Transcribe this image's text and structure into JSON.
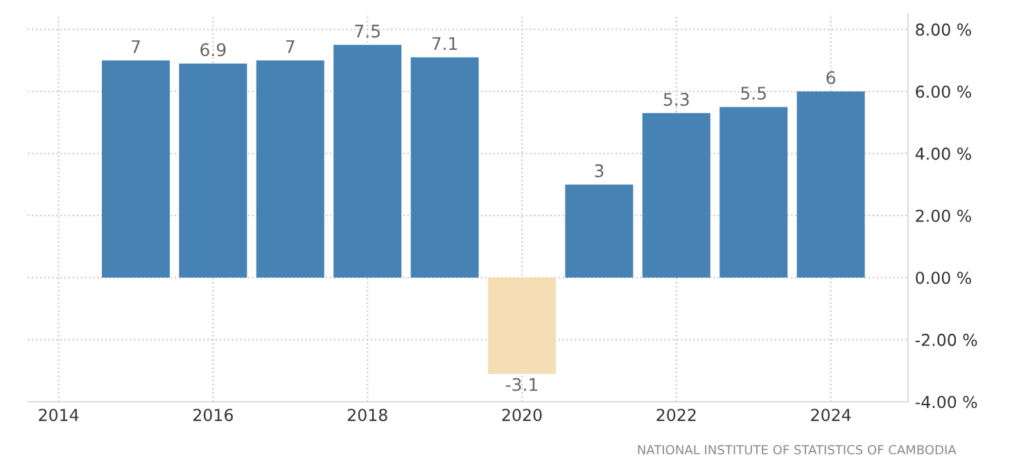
{
  "chart_data": {
    "type": "bar",
    "x": [
      2015,
      2016,
      2017,
      2018,
      2019,
      2020,
      2021,
      2022,
      2023,
      2024
    ],
    "values": [
      7,
      6.9,
      7,
      7.5,
      7.1,
      -3.1,
      3,
      5.3,
      5.5,
      6
    ],
    "colors": [
      "#4682b4",
      "#4682b4",
      "#4682b4",
      "#4682b4",
      "#4682b4",
      "#f5deb3",
      "#4682b4",
      "#4682b4",
      "#4682b4",
      "#4682b4"
    ],
    "data_labels": true,
    "xlim": [
      2013.6,
      2025.0
    ],
    "xticks": [
      2014,
      2016,
      2018,
      2020,
      2022,
      2024
    ],
    "ylim": [
      -4,
      8.5
    ],
    "yticks": [
      {
        "value": 8,
        "label": "8.00 %"
      },
      {
        "value": 6,
        "label": "6.00 %"
      },
      {
        "value": 4,
        "label": "4.00 %"
      },
      {
        "value": 2,
        "label": "2.00 %"
      },
      {
        "value": 0,
        "label": "0.00 %"
      },
      {
        "value": -2,
        "label": "-2.00 %"
      },
      {
        "value": -4,
        "label": "-4.00 %"
      }
    ],
    "grid": true,
    "annotations": [
      "NATIONAL INSTITUTE OF STATISTICS OF CAMBODIA"
    ]
  }
}
